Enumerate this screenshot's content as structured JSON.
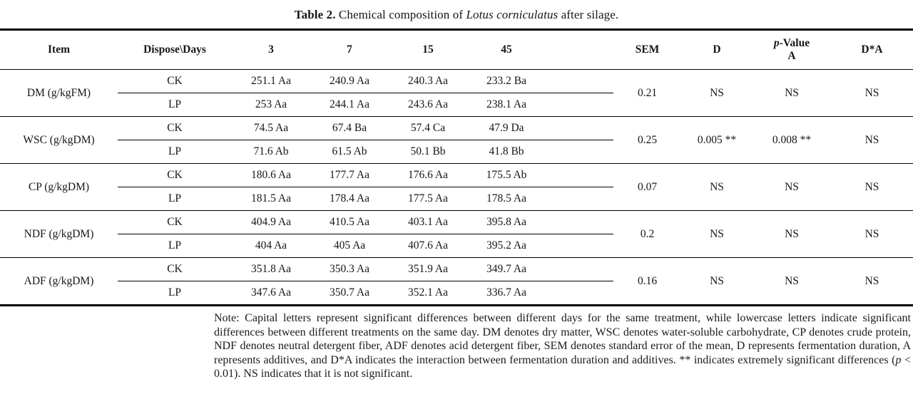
{
  "caption": {
    "label": "Table 2.",
    "pre": " Chemical composition of ",
    "italic": "Lotus corniculatus",
    "post": " after silage."
  },
  "table": {
    "headers": {
      "item": "Item",
      "dispose_days": "Dispose\\Days",
      "days": [
        "3",
        "7",
        "15",
        "45"
      ],
      "sem": "SEM",
      "d": "D",
      "p_value_italic": "p",
      "p_value_rest": "-Value",
      "a": "A",
      "dxa": "D*A"
    },
    "rows": [
      {
        "item": "DM (g/kgFM)",
        "treatments": [
          {
            "name": "CK",
            "values": [
              "251.1 Aa",
              "240.9 Aa",
              "240.3 Aa",
              "233.2 Ba"
            ]
          },
          {
            "name": "LP",
            "values": [
              "253 Aa",
              "244.1 Aa",
              "243.6 Aa",
              "238.1 Aa"
            ]
          }
        ],
        "sem": "0.21",
        "d": "NS",
        "a": "NS",
        "dxa": "NS"
      },
      {
        "item": "WSC (g/kgDM)",
        "treatments": [
          {
            "name": "CK",
            "values": [
              "74.5 Aa",
              "67.4 Ba",
              "57.4 Ca",
              "47.9 Da"
            ]
          },
          {
            "name": "LP",
            "values": [
              "71.6 Ab",
              "61.5 Ab",
              "50.1 Bb",
              "41.8 Bb"
            ]
          }
        ],
        "sem": "0.25",
        "d": "0.005 **",
        "a": "0.008 **",
        "dxa": "NS"
      },
      {
        "item": "CP (g/kgDM)",
        "treatments": [
          {
            "name": "CK",
            "values": [
              "180.6 Aa",
              "177.7 Aa",
              "176.6 Aa",
              "175.5 Ab"
            ]
          },
          {
            "name": "LP",
            "values": [
              "181.5 Aa",
              "178.4 Aa",
              "177.5 Aa",
              "178.5 Aa"
            ]
          }
        ],
        "sem": "0.07",
        "d": "NS",
        "a": "NS",
        "dxa": "NS"
      },
      {
        "item": "NDF (g/kgDM)",
        "treatments": [
          {
            "name": "CK",
            "values": [
              "404.9 Aa",
              "410.5 Aa",
              "403.1 Aa",
              "395.8 Aa"
            ]
          },
          {
            "name": "LP",
            "values": [
              "404 Aa",
              "405 Aa",
              "407.6 Aa",
              "395.2 Aa"
            ]
          }
        ],
        "sem": "0.2",
        "d": "NS",
        "a": "NS",
        "dxa": "NS"
      },
      {
        "item": "ADF (g/kgDM)",
        "treatments": [
          {
            "name": "CK",
            "values": [
              "351.8 Aa",
              "350.3 Aa",
              "351.9 Aa",
              "349.7 Aa"
            ]
          },
          {
            "name": "LP",
            "values": [
              "347.6 Aa",
              "350.7 Aa",
              "352.1 Aa",
              "336.7 Aa"
            ]
          }
        ],
        "sem": "0.16",
        "d": "NS",
        "a": "NS",
        "dxa": "NS"
      }
    ]
  },
  "note": {
    "segments": [
      {
        "text": "Note: Capital letters represent significant differences between different days for the same treatment, while lowercase letters indicate significant differences between different treatments on the same day. DM denotes dry matter, WSC denotes water-soluble carbohydrate, CP denotes crude protein, NDF denotes neutral detergent fiber, ADF denotes acid detergent fiber, SEM denotes standard error of the mean, D represents fermentation duration, A represents additives, and D*A indicates the interaction between fermentation duration and additives. ** indicates extremely significant differences (",
        "italic": false
      },
      {
        "text": "p",
        "italic": true
      },
      {
        "text": " < 0.01). NS indicates that it is not significant.",
        "italic": false
      }
    ]
  }
}
